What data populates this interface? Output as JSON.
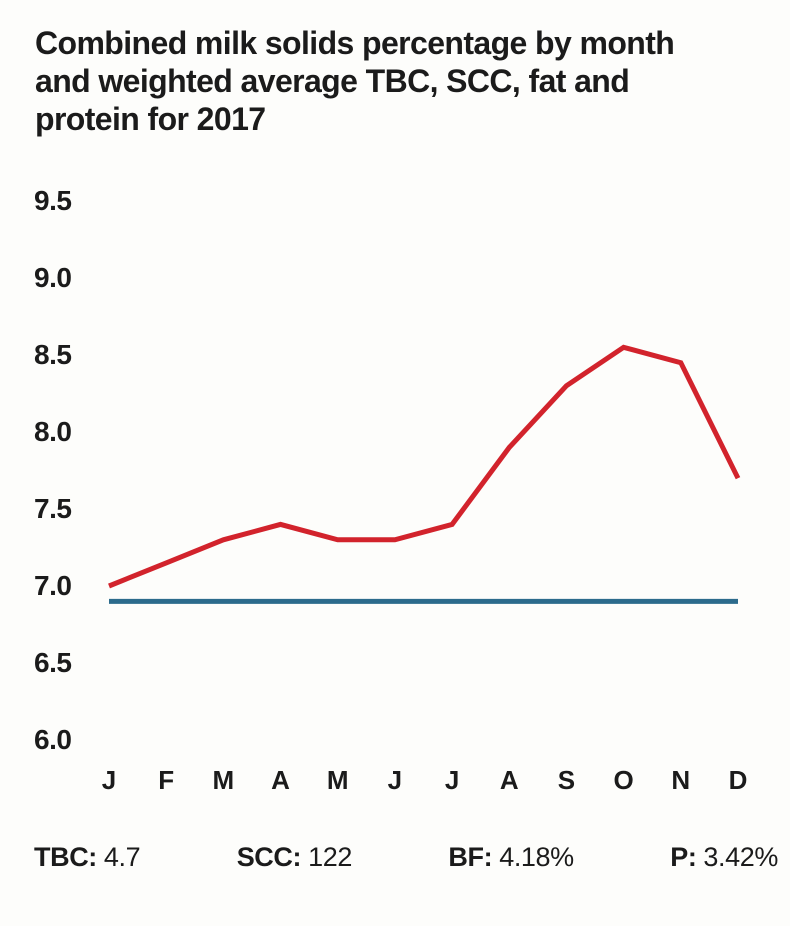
{
  "title": {
    "lines": [
      "Combined milk solids percentage by month",
      "and weighted average TBC, SCC, fat and",
      "protein for 2017"
    ]
  },
  "chart_data": {
    "type": "line",
    "title": "Combined milk solids percentage by month and weighted average TBC, SCC, fat and protein for 2017",
    "categories": [
      "J",
      "F",
      "M",
      "A",
      "M",
      "J",
      "J",
      "A",
      "S",
      "O",
      "N",
      "D"
    ],
    "series": [
      {
        "name": "combined-milk-solids-percent",
        "color": "#d2232c",
        "stroke_width": 5,
        "values": [
          7.0,
          7.15,
          7.3,
          7.4,
          7.3,
          7.3,
          7.4,
          7.9,
          8.3,
          8.55,
          8.45,
          7.7
        ]
      },
      {
        "name": "flat-reference-line",
        "color": "#2c6b8c",
        "stroke_width": 5,
        "values": [
          6.9,
          6.9,
          6.9,
          6.9,
          6.9,
          6.9,
          6.9,
          6.9,
          6.9,
          6.9,
          6.9,
          6.9
        ]
      }
    ],
    "ytick_labels": [
      "9.5",
      "9.0",
      "8.5",
      "8.0",
      "7.5",
      "7.0",
      "6.5",
      "6.0"
    ],
    "yticks": [
      9.5,
      9.0,
      8.5,
      8.0,
      7.5,
      7.0,
      6.5,
      6.0
    ],
    "ylim": [
      6.0,
      9.5
    ],
    "grid": false,
    "legend": "none"
  },
  "footer_stats": [
    {
      "label": "TBC:",
      "value": "4.7"
    },
    {
      "label": "SCC:",
      "value": "122"
    },
    {
      "label": "BF:",
      "value": "4.18%"
    },
    {
      "label": "P:",
      "value": "3.42%"
    }
  ]
}
